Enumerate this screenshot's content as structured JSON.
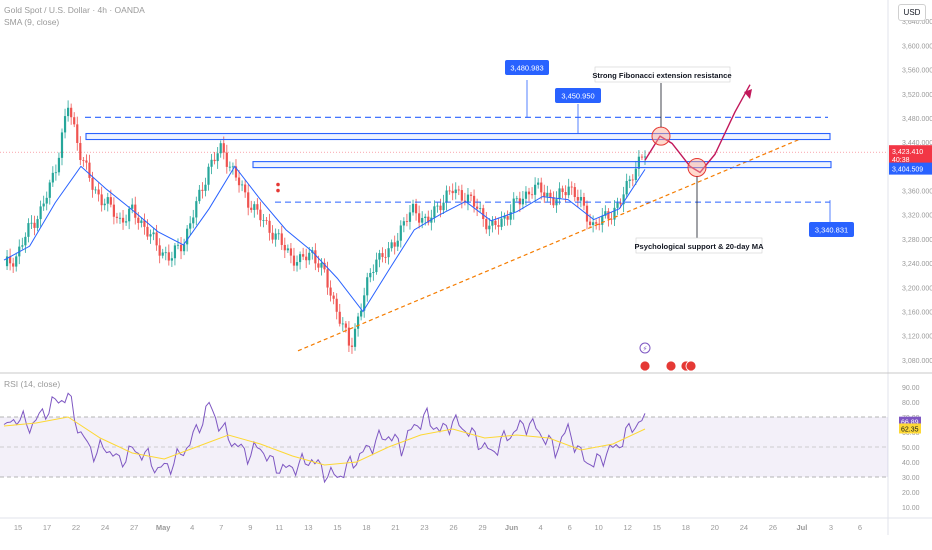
{
  "header": {
    "symbol_title": "Gold Spot / U.S. Dollar · 4h · OANDA",
    "indicator": "SMA (9, close)",
    "currency": "USD"
  },
  "rsi_header": {
    "label": "RSI (14, close)"
  },
  "chart_data": {
    "type": "line",
    "title": "Gold Spot / U.S. Dollar · 4h · OANDA",
    "y_axis": {
      "min": 3060,
      "max": 3675,
      "ticks": [
        3080,
        3120,
        3160,
        3200,
        3240,
        3280,
        3320,
        3360,
        3400,
        3440,
        3480,
        3520,
        3560,
        3600,
        3640
      ]
    },
    "x_ticks": [
      "15",
      "17",
      "22",
      "24",
      "27",
      "May",
      "4",
      "7",
      "9",
      "11",
      "13",
      "15",
      "18",
      "21",
      "23",
      "26",
      "29",
      "Jun",
      "4",
      "6",
      "10",
      "12",
      "15",
      "18",
      "20",
      "24",
      "26",
      "Jul",
      "3",
      "6"
    ],
    "price_series": {
      "name": "XAUUSD",
      "x": [
        0,
        2,
        4,
        6,
        8,
        10,
        12,
        14,
        16,
        18,
        20,
        22,
        24,
        26,
        28,
        30,
        32,
        34,
        36,
        38,
        40,
        42,
        44,
        46,
        48,
        50,
        52,
        54,
        56,
        58,
        60,
        62,
        64,
        66,
        68,
        70,
        72,
        74,
        76,
        78,
        80,
        82,
        84,
        86,
        88,
        90,
        92,
        94,
        96,
        98,
        100
      ],
      "y": [
        3235,
        3252,
        3300,
        3330,
        3395,
        3500,
        3420,
        3360,
        3340,
        3310,
        3325,
        3300,
        3265,
        3248,
        3275,
        3335,
        3400,
        3430,
        3385,
        3345,
        3315,
        3290,
        3262,
        3240,
        3260,
        3220,
        3160,
        3100,
        3180,
        3250,
        3255,
        3300,
        3330,
        3305,
        3340,
        3360,
        3350,
        3330,
        3295,
        3315,
        3340,
        3360,
        3362,
        3340,
        3370,
        3338,
        3300,
        3318,
        3335,
        3390,
        3420
      ]
    },
    "sma_series": {
      "name": "SMA (9, close)",
      "x": [
        0,
        4,
        8,
        12,
        16,
        20,
        24,
        28,
        32,
        36,
        40,
        44,
        48,
        52,
        56,
        60,
        64,
        68,
        72,
        76,
        80,
        84,
        88,
        92,
        96,
        100
      ],
      "y": [
        3245,
        3268,
        3340,
        3400,
        3362,
        3328,
        3292,
        3270,
        3330,
        3400,
        3345,
        3295,
        3260,
        3215,
        3160,
        3228,
        3295,
        3320,
        3342,
        3310,
        3325,
        3350,
        3345,
        3312,
        3330,
        3395
      ]
    },
    "rsi_series": {
      "name": "RSI (14, close)",
      "x": [
        0,
        2,
        4,
        6,
        8,
        10,
        12,
        14,
        16,
        18,
        20,
        22,
        24,
        26,
        28,
        30,
        32,
        34,
        36,
        38,
        40,
        42,
        44,
        46,
        48,
        50,
        52,
        54,
        56,
        58,
        60,
        62,
        64,
        66,
        68,
        70,
        72,
        74,
        76,
        78,
        80,
        82,
        84,
        86,
        88,
        90,
        92,
        94,
        96,
        98,
        100
      ],
      "y": [
        62,
        70,
        64,
        72,
        80,
        84,
        58,
        46,
        50,
        40,
        48,
        45,
        35,
        38,
        47,
        60,
        78,
        62,
        52,
        45,
        50,
        38,
        35,
        38,
        42,
        33,
        30,
        38,
        46,
        54,
        58,
        50,
        64,
        70,
        60,
        67,
        62,
        54,
        46,
        55,
        62,
        66,
        58,
        48,
        62,
        44,
        38,
        46,
        52,
        64,
        68
      ]
    },
    "rsi_ma_series": {
      "name": "RSI-based MA",
      "x": [
        0,
        5,
        10,
        15,
        20,
        25,
        30,
        35,
        40,
        45,
        50,
        55,
        60,
        65,
        70,
        75,
        80,
        85,
        90,
        95,
        100
      ],
      "y": [
        64,
        66,
        70,
        56,
        46,
        42,
        50,
        58,
        52,
        44,
        38,
        40,
        50,
        58,
        62,
        56,
        58,
        56,
        48,
        52,
        62
      ]
    },
    "rsi_levels": [
      70,
      50,
      30
    ],
    "rsi_ticks": [
      90,
      80,
      70,
      60,
      50,
      40,
      30,
      20,
      10
    ],
    "price_levels": [
      {
        "value": 3480.983,
        "label": "3,480.983",
        "style": "dashed"
      },
      {
        "value": 3450.95,
        "label": "3,450.950",
        "style": "zone"
      },
      {
        "value": 3404.509,
        "label": "3,404.509",
        "style": "zone"
      },
      {
        "value": 3340.831,
        "label": "3,340.831",
        "style": "dashed"
      }
    ],
    "current_price": {
      "value": 3423.41,
      "label": "3,423.410",
      "sub": "40:38"
    },
    "rsi_current": [
      {
        "value": 66.89,
        "label": "66.89"
      },
      {
        "value": 62.35,
        "label": "62.35"
      }
    ],
    "annotations": [
      {
        "text": "Strong Fibonacci extension resistance"
      },
      {
        "text": "Psychological support & 20-day MA"
      }
    ],
    "colors": {
      "up": "#26a69a",
      "down": "#ef5350",
      "sma": "#2962ff",
      "rsi": "#7e57c2",
      "rsi_ma": "#fdd835",
      "levels": "#2962ff",
      "projection": "#c2185b",
      "trendline": "#f57c00",
      "last_price": "#f23645"
    }
  }
}
